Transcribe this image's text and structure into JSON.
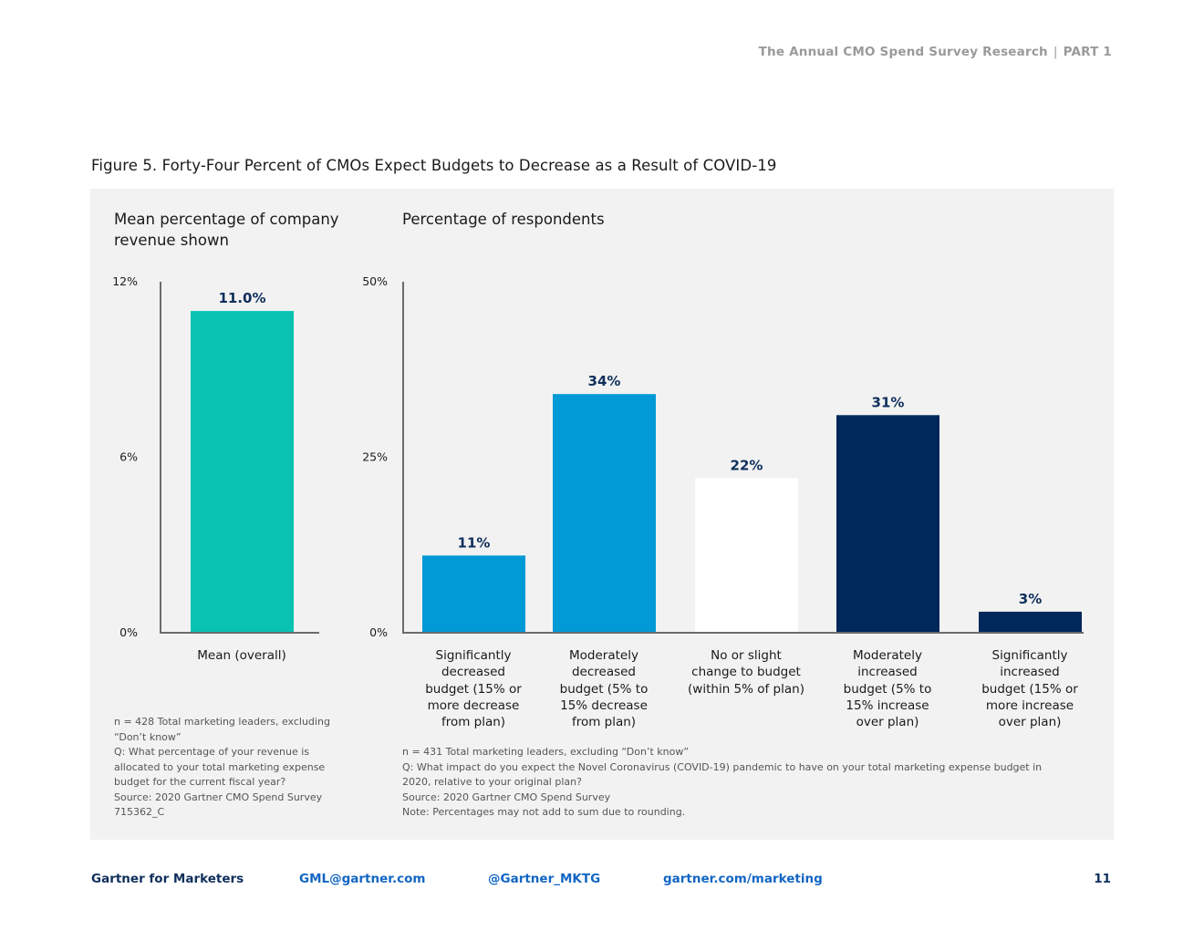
{
  "header": {
    "report": "The Annual CMO Spend Survey Research",
    "part": "PART 1"
  },
  "figure_title": "Figure 5. Forty-Four Percent of CMOs Expect Budgets to Decrease as a Result of COVID-19",
  "colors": {
    "teal": "#09c2b2",
    "blue": "#0299d7",
    "white": "#ffffff",
    "navy": "#00285a",
    "label": "#0f2f5c",
    "panel": "#f2f2f2",
    "axis": "#6b6b6b"
  },
  "chart_data": [
    {
      "type": "bar",
      "subtitle": "Mean percentage of company revenue shown",
      "categories": [
        "Mean (overall)"
      ],
      "values": [
        11.0
      ],
      "value_labels": [
        "11.0%"
      ],
      "bar_colors": [
        "#09c2b2"
      ],
      "ylim": [
        0,
        12
      ],
      "yticks": [
        0,
        6,
        12
      ],
      "ytick_labels": [
        "0%",
        "6%",
        "12%"
      ],
      "grid": false
    },
    {
      "type": "bar",
      "subtitle": "Percentage of respondents",
      "categories": [
        "Significantly decreased budget (15% or more decrease from plan)",
        "Moderately decreased budget (5% to 15% decrease from plan)",
        "No or slight change to budget (within 5% of plan)",
        "Moderately increased budget (5% to 15% increase over plan)",
        "Significantly increased budget (15% or more increase over plan)"
      ],
      "category_lines": [
        [
          "Significantly",
          "decreased",
          "budget (15% or",
          "more decrease",
          "from plan)"
        ],
        [
          "Moderately",
          "decreased",
          "budget (5% to",
          "15% decrease",
          "from plan)"
        ],
        [
          "No or slight",
          "change to budget",
          "(within 5% of plan)"
        ],
        [
          "Moderately",
          "increased",
          "budget (5% to",
          "15% increase",
          "over plan)"
        ],
        [
          "Significantly",
          "increased",
          "budget (15% or",
          "more increase",
          "over plan)"
        ]
      ],
      "values": [
        11,
        34,
        22,
        31,
        3
      ],
      "value_labels": [
        "11%",
        "34%",
        "22%",
        "31%",
        "3%"
      ],
      "bar_colors": [
        "#0299d7",
        "#0299d7",
        "#ffffff",
        "#00285a",
        "#00285a"
      ],
      "ylim": [
        0,
        50
      ],
      "yticks": [
        0,
        25,
        50
      ],
      "ytick_labels": [
        "0%",
        "25%",
        "50%"
      ],
      "grid": false
    }
  ],
  "notes_left": [
    "n = 428 Total marketing leaders, excluding",
    "“Don’t know”",
    "Q: What percentage of your revenue is",
    "allocated to your total marketing expense",
    "budget for the current fiscal year?",
    "Source: 2020 Gartner CMO Spend Survey",
    "715362_C"
  ],
  "notes_right": [
    "n = 431 Total marketing leaders, excluding “Don’t know”",
    "Q: What impact do you expect the Novel Coronavirus (COVID-19) pandemic to have on your total marketing expense budget in",
    "2020, relative to your original plan?",
    "Source: 2020 Gartner CMO Spend Survey",
    "Note: Percentages may not add to sum due to rounding."
  ],
  "footer": {
    "brand": "Gartner for Marketers",
    "email": "GML@gartner.com",
    "twitter": "@Gartner_MKTG",
    "website": "gartner.com/marketing",
    "page_number": "11"
  }
}
